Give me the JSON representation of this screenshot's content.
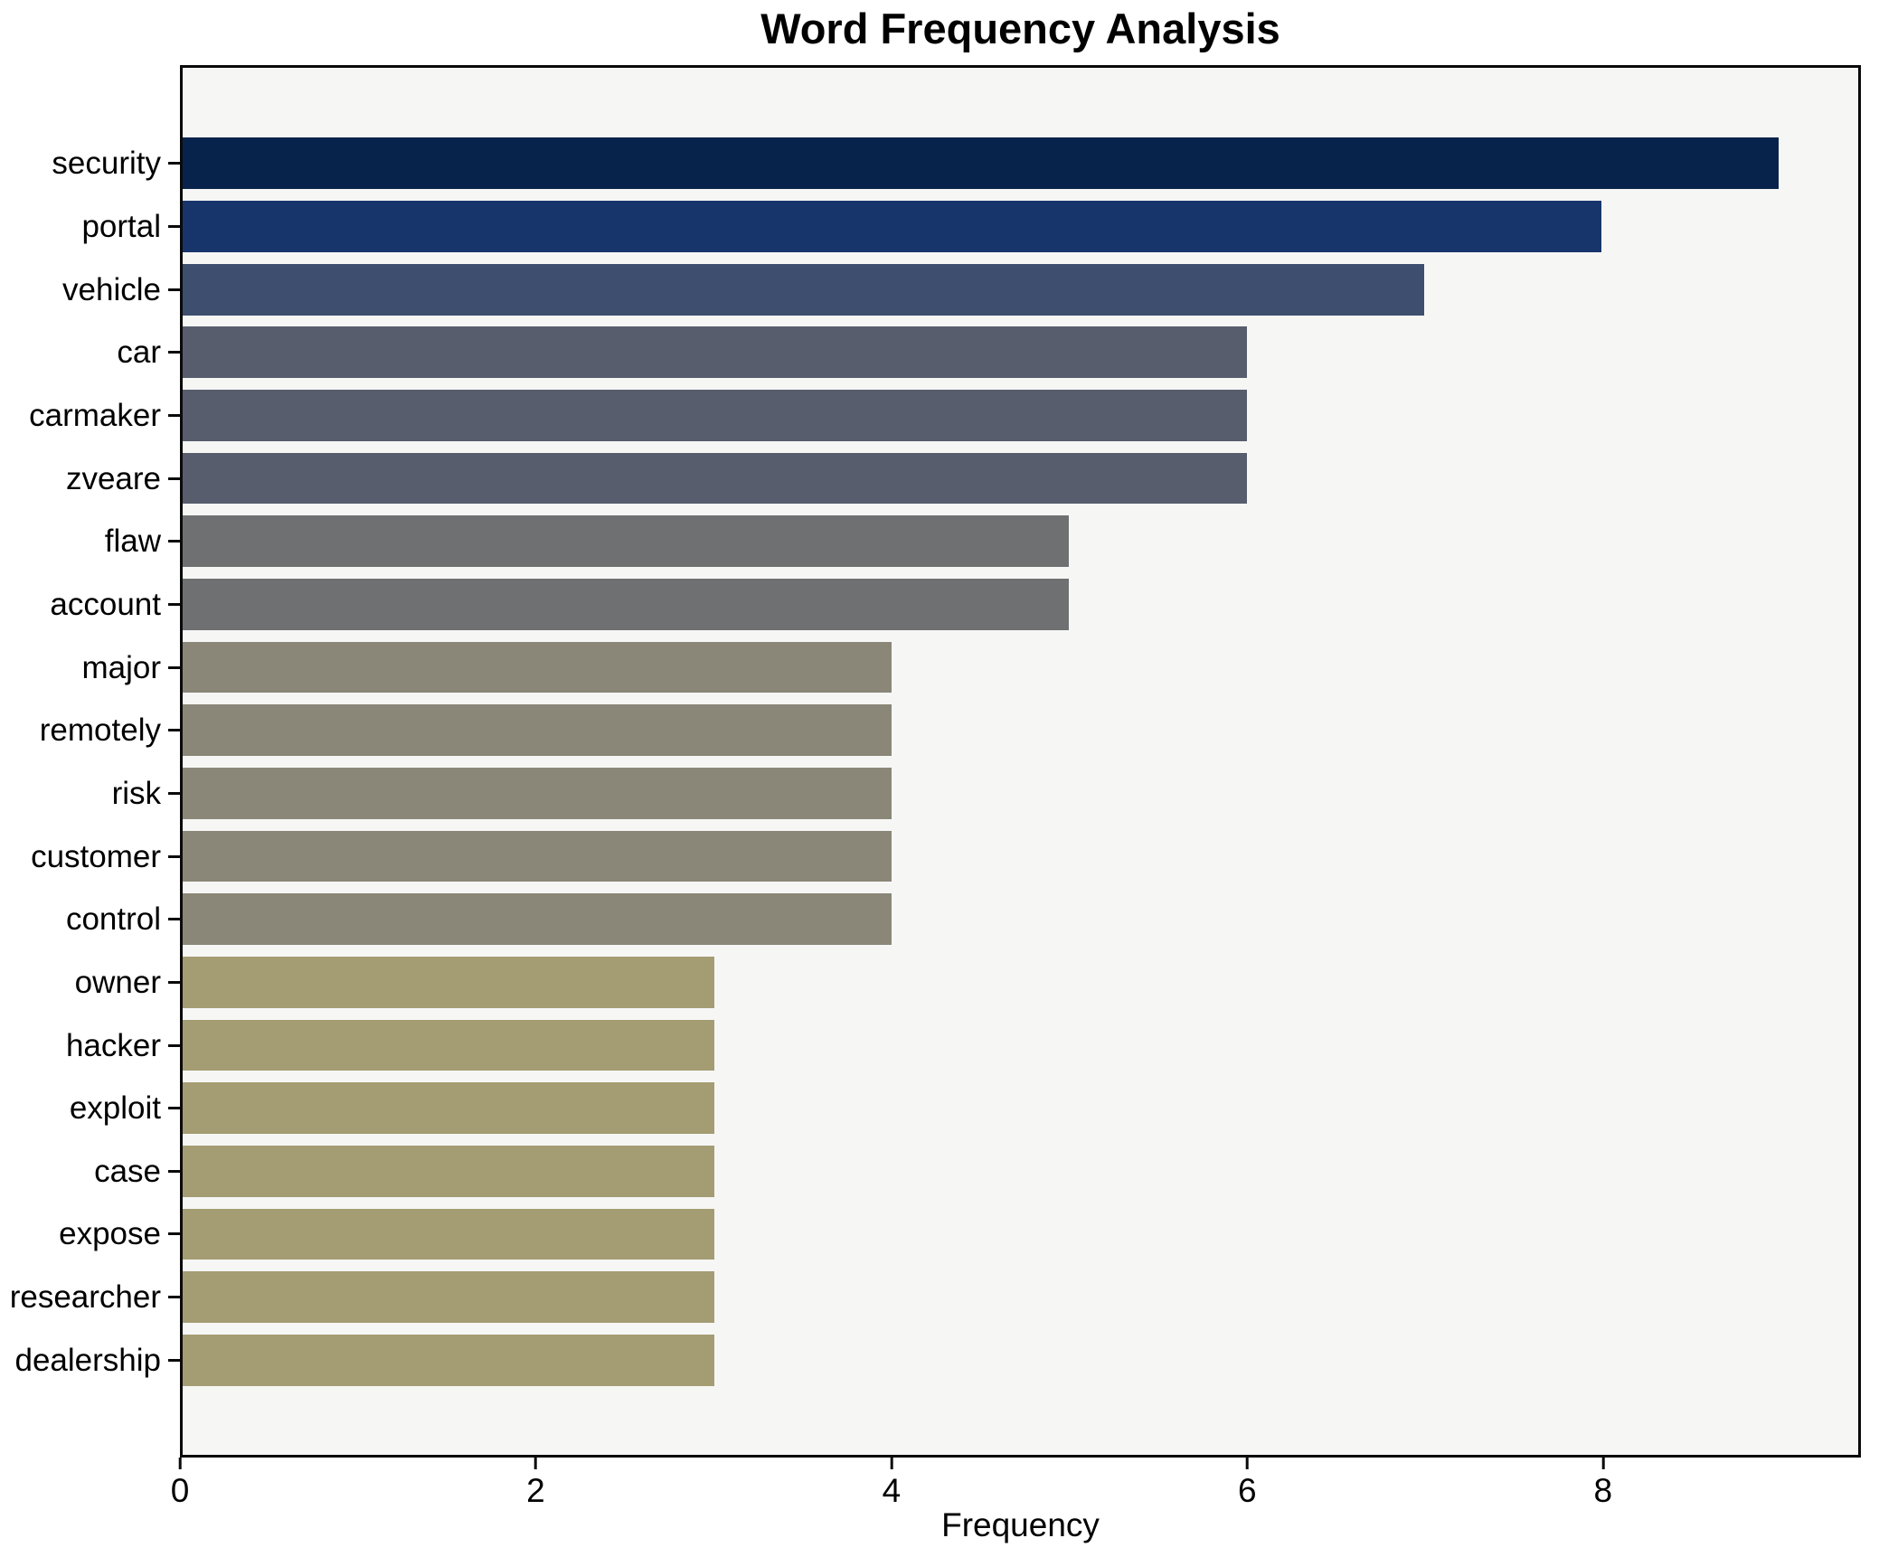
{
  "chart_data": {
    "type": "bar",
    "orientation": "horizontal",
    "title": "Word Frequency Analysis",
    "xlabel": "Frequency",
    "ylabel": "",
    "categories": [
      "security",
      "portal",
      "vehicle",
      "car",
      "carmaker",
      "zveare",
      "flaw",
      "account",
      "major",
      "remotely",
      "risk",
      "customer",
      "control",
      "owner",
      "hacker",
      "exploit",
      "case",
      "expose",
      "researcher",
      "dealership"
    ],
    "values": [
      9,
      8,
      7,
      6,
      6,
      6,
      5,
      5,
      4,
      4,
      4,
      4,
      4,
      3,
      3,
      3,
      3,
      3,
      3,
      3
    ],
    "bar_colors": [
      "#08234b",
      "#17356b",
      "#3d4e6f",
      "#575d6c",
      "#575d6c",
      "#575d6c",
      "#6e7072",
      "#6e7072",
      "#8a8778",
      "#8a8778",
      "#8a8778",
      "#8a8778",
      "#8a8778",
      "#a49c72",
      "#a49c72",
      "#a49c72",
      "#a49c72",
      "#a49c72",
      "#a49c72",
      "#a49c72"
    ],
    "value_color_map": {
      "9": "#08234b",
      "8": "#17356b",
      "7": "#3d4e6f",
      "6": "#575d6c",
      "5": "#6e7072",
      "4": "#8a8778",
      "3": "#a49c72"
    },
    "xlim": [
      0,
      9.45
    ],
    "x_ticks": [
      0,
      2,
      4,
      6,
      8
    ],
    "grid": false,
    "legend": null,
    "plot_background": "#f6f6f5",
    "figure_background": "#ffffff",
    "colormap_hint": "cividis (dark navy high frequency to khaki low frequency)"
  }
}
